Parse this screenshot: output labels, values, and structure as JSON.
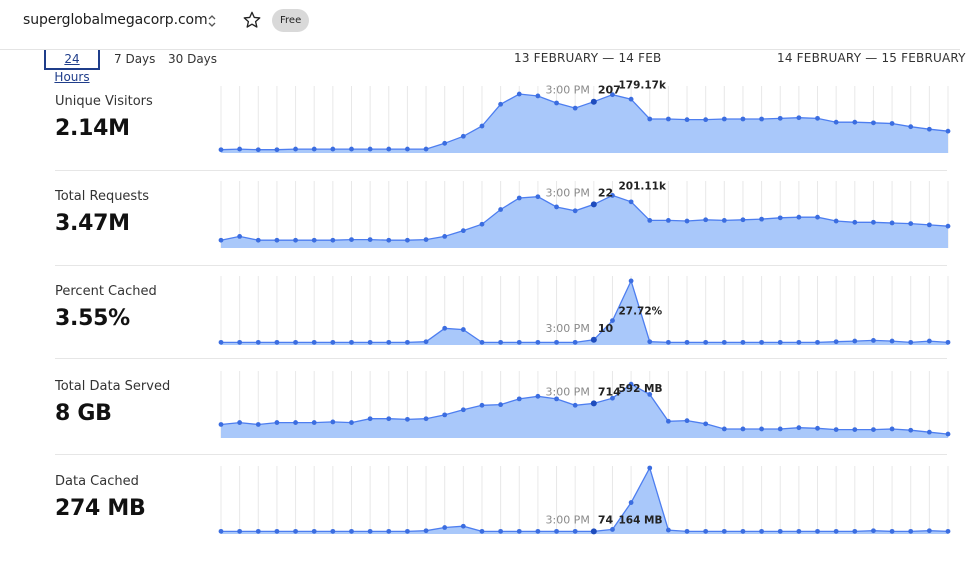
{
  "site": {
    "domain": "superglobalmegacorp.com",
    "plan_badge": "Free"
  },
  "time_range": {
    "tabs": [
      "24 Hours",
      "7 Days",
      "30 Days"
    ],
    "selected": "24 Hours",
    "date_left": "13 FEBRUARY — 14 FEB",
    "date_right": "14 FEBRUARY — 15 FEBRUARY"
  },
  "metrics": [
    {
      "label": "Unique Visitors",
      "value": "2.14M",
      "hover_time": "3:00 PM",
      "hover_value": "207",
      "peak_label": "179.17k"
    },
    {
      "label": "Total Requests",
      "value": "3.47M",
      "hover_time": "3:00 PM",
      "hover_value": "22",
      "peak_label": "201.11k"
    },
    {
      "label": "Percent Cached",
      "value": "3.55%",
      "hover_time": "3:00 PM",
      "hover_value": "10",
      "peak_label": "27.72%"
    },
    {
      "label": "Total Data Served",
      "value": "8 GB",
      "hover_time": "3:00 PM",
      "hover_value": "714",
      "peak_label": "592 MB"
    },
    {
      "label": "Data Cached",
      "value": "274 MB",
      "hover_time": "3:00 PM",
      "hover_value": "74",
      "peak_label": "164 MB"
    }
  ],
  "chart_data": [
    {
      "type": "area",
      "name": "Unique Visitors",
      "ylim": [
        0,
        1
      ],
      "hover_index": 20,
      "peak_index": 21,
      "values": [
        0.02,
        0.03,
        0.02,
        0.02,
        0.03,
        0.03,
        0.03,
        0.03,
        0.03,
        0.03,
        0.03,
        0.03,
        0.12,
        0.23,
        0.39,
        0.73,
        0.89,
        0.86,
        0.75,
        0.67,
        0.77,
        0.88,
        0.81,
        0.5,
        0.5,
        0.49,
        0.49,
        0.5,
        0.5,
        0.5,
        0.51,
        0.52,
        0.51,
        0.45,
        0.45,
        0.44,
        0.43,
        0.38,
        0.34,
        0.31
      ]
    },
    {
      "type": "area",
      "name": "Total Requests",
      "ylim": [
        0,
        1
      ],
      "hover_index": 20,
      "peak_index": 21,
      "values": [
        0.09,
        0.15,
        0.09,
        0.09,
        0.09,
        0.09,
        0.09,
        0.1,
        0.1,
        0.09,
        0.09,
        0.1,
        0.15,
        0.24,
        0.34,
        0.57,
        0.75,
        0.77,
        0.61,
        0.55,
        0.65,
        0.79,
        0.69,
        0.4,
        0.4,
        0.39,
        0.41,
        0.4,
        0.41,
        0.42,
        0.44,
        0.45,
        0.45,
        0.39,
        0.37,
        0.37,
        0.36,
        0.35,
        0.33,
        0.31
      ]
    },
    {
      "type": "area",
      "name": "Percent Cached",
      "ylim": [
        0,
        1
      ],
      "hover_index": 20,
      "peak_index": 21,
      "values": [
        0.01,
        0.01,
        0.01,
        0.01,
        0.01,
        0.01,
        0.01,
        0.01,
        0.01,
        0.01,
        0.01,
        0.02,
        0.23,
        0.21,
        0.01,
        0.01,
        0.01,
        0.01,
        0.01,
        0.01,
        0.05,
        0.35,
        0.97,
        0.02,
        0.01,
        0.01,
        0.01,
        0.01,
        0.01,
        0.01,
        0.01,
        0.01,
        0.01,
        0.02,
        0.03,
        0.04,
        0.03,
        0.01,
        0.03,
        0.01
      ]
    },
    {
      "type": "area",
      "name": "Total Data Served",
      "ylim": [
        0,
        1
      ],
      "hover_index": 20,
      "peak_index": 21,
      "values": [
        0.18,
        0.21,
        0.18,
        0.21,
        0.21,
        0.21,
        0.22,
        0.21,
        0.27,
        0.27,
        0.26,
        0.27,
        0.33,
        0.41,
        0.48,
        0.49,
        0.58,
        0.62,
        0.58,
        0.48,
        0.51,
        0.59,
        0.81,
        0.65,
        0.23,
        0.24,
        0.19,
        0.11,
        0.11,
        0.11,
        0.11,
        0.13,
        0.12,
        0.1,
        0.1,
        0.1,
        0.11,
        0.09,
        0.06,
        0.03
      ]
    },
    {
      "type": "area",
      "name": "Data Cached",
      "ylim": [
        0,
        1
      ],
      "hover_index": 20,
      "peak_index": 21,
      "values": [
        0.01,
        0.01,
        0.01,
        0.01,
        0.01,
        0.01,
        0.01,
        0.01,
        0.01,
        0.01,
        0.01,
        0.02,
        0.07,
        0.09,
        0.01,
        0.01,
        0.01,
        0.01,
        0.01,
        0.01,
        0.01,
        0.04,
        0.46,
        1.0,
        0.03,
        0.01,
        0.01,
        0.01,
        0.01,
        0.01,
        0.01,
        0.01,
        0.01,
        0.01,
        0.01,
        0.02,
        0.01,
        0.01,
        0.02,
        0.01
      ]
    }
  ],
  "colors": {
    "accent": "#1f3d8a",
    "area_fill": "#a9c8fa",
    "line": "#4d7ef0",
    "point": "#3b6de0",
    "hover_point": "#1e4cbd"
  }
}
